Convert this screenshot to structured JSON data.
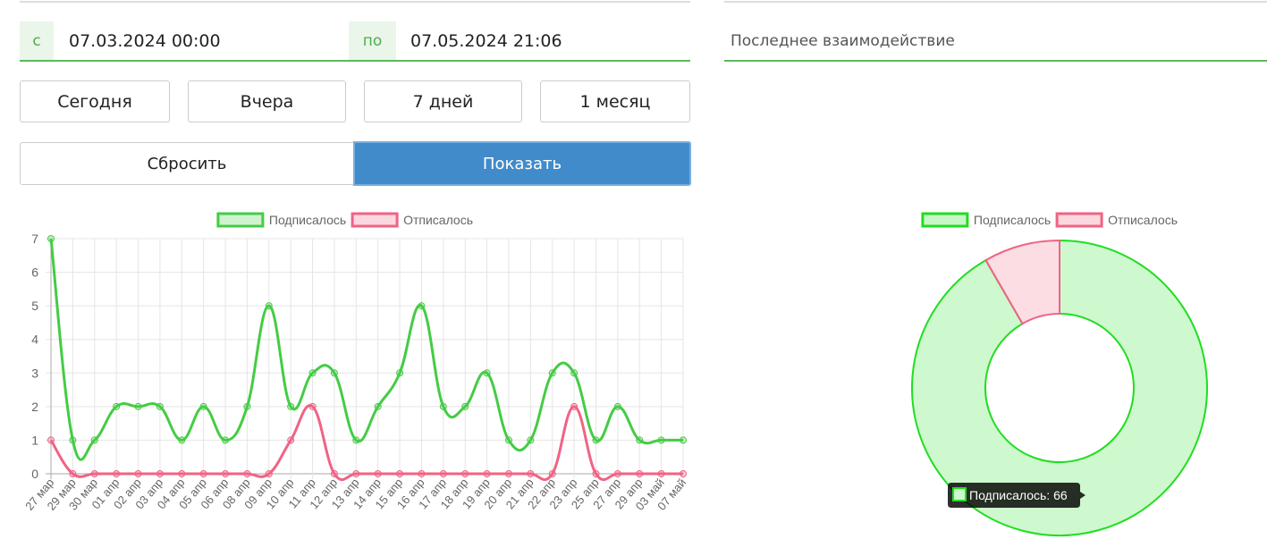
{
  "date_filter": {
    "from_label": "с",
    "from_value": "07.03.2024 00:00",
    "to_label": "по",
    "to_value": "07.05.2024 21:06"
  },
  "last_interaction": "Последнее взаимодействие",
  "quick_ranges": [
    "Сегодня",
    "Вчера",
    "7 дней",
    "1 месяц"
  ],
  "actions": {
    "reset": "Сбросить",
    "show": "Показать"
  },
  "chart_data": [
    {
      "type": "line",
      "categories": [
        "27 мар",
        "29 мар",
        "30 мар",
        "01 апр",
        "02 апр",
        "03 апр",
        "04 апр",
        "05 апр",
        "06 апр",
        "08 апр",
        "09 апр",
        "10 апр",
        "11 апр",
        "12 апр",
        "13 апр",
        "14 апр",
        "15 апр",
        "16 апр",
        "17 апр",
        "18 апр",
        "19 апр",
        "20 апр",
        "21 апр",
        "22 апр",
        "23 апр",
        "25 апр",
        "27 апр",
        "29 апр",
        "03 май",
        "07 май"
      ],
      "series": [
        {
          "name": "Подписалось",
          "color": "#44cc44",
          "values": [
            7,
            1,
            1,
            2,
            2,
            2,
            1,
            2,
            1,
            2,
            5,
            2,
            3,
            3,
            1,
            2,
            3,
            5,
            2,
            2,
            3,
            1,
            1,
            3,
            3,
            1,
            2,
            1,
            1,
            1
          ]
        },
        {
          "name": "Отписалось",
          "color": "#f06384",
          "values": [
            1,
            0,
            0,
            0,
            0,
            0,
            0,
            0,
            0,
            0,
            0,
            1,
            2,
            0,
            0,
            0,
            0,
            0,
            0,
            0,
            0,
            0,
            0,
            0,
            2,
            0,
            0,
            0,
            0,
            0
          ]
        }
      ],
      "ylim": [
        0,
        7
      ],
      "yticks": [
        0,
        1,
        2,
        3,
        4,
        5,
        6,
        7
      ],
      "grid": true,
      "legend": "top"
    },
    {
      "type": "doughnut",
      "categories": [
        "Подписалось",
        "Отписалось"
      ],
      "values": [
        66,
        6
      ],
      "colors": [
        "#22dd22",
        "#f06384"
      ],
      "tooltip": "Подписалось: 66",
      "legend": "top"
    }
  ]
}
